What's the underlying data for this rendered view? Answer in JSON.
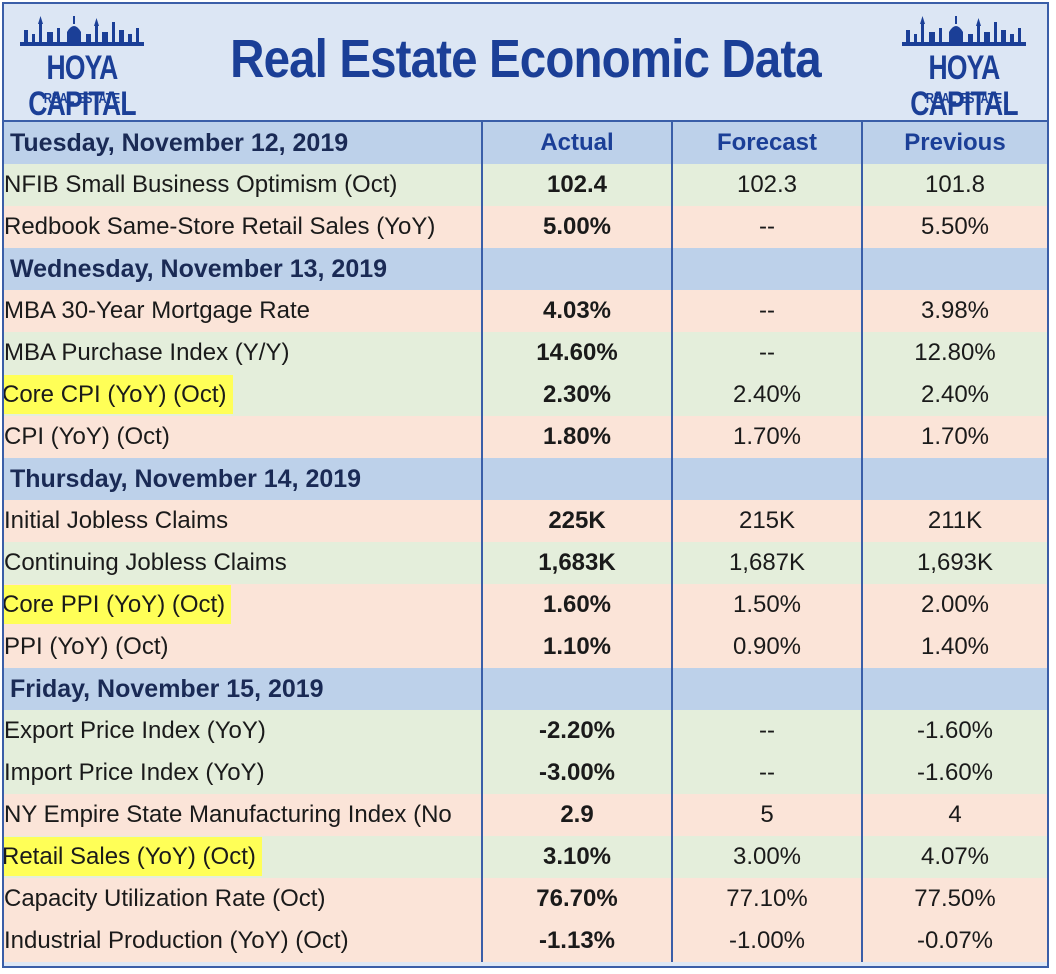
{
  "header": {
    "title": "Real Estate Economic Data",
    "logo_brand": "HOYA CAPITAL",
    "logo_sub": "REAL ESTATE"
  },
  "columns": {
    "actual": "Actual",
    "forecast": "Forecast",
    "previous": "Previous"
  },
  "sections": [
    {
      "date": "Tuesday, November 12, 2019",
      "rows": [
        {
          "label": "NFIB Small Business Optimism (Oct)",
          "actual": "102.4",
          "forecast": "102.3",
          "previous": "101.8"
        },
        {
          "label": "Redbook Same-Store Retail Sales (YoY)",
          "actual": "5.00%",
          "forecast": "--",
          "previous": "5.50%"
        }
      ]
    },
    {
      "date": "Wednesday, November 13, 2019",
      "rows": [
        {
          "label": "MBA 30-Year Mortgage Rate",
          "actual": "4.03%",
          "forecast": "--",
          "previous": "3.98%"
        },
        {
          "label": "MBA Purchase Index (Y/Y)",
          "actual": "14.60%",
          "forecast": "--",
          "previous": "12.80%"
        },
        {
          "label": "Core CPI (YoY) (Oct)",
          "actual": "2.30%",
          "forecast": "2.40%",
          "previous": "2.40%"
        },
        {
          "label": "CPI (YoY) (Oct)",
          "actual": "1.80%",
          "forecast": "1.70%",
          "previous": "1.70%"
        }
      ]
    },
    {
      "date": "Thursday, November 14, 2019",
      "rows": [
        {
          "label": "Initial Jobless Claims",
          "actual": "225K",
          "forecast": "215K",
          "previous": "211K"
        },
        {
          "label": "Continuing Jobless Claims",
          "actual": "1,683K",
          "forecast": "1,687K",
          "previous": "1,693K"
        },
        {
          "label": "Core PPI (YoY) (Oct)",
          "actual": "1.60%",
          "forecast": "1.50%",
          "previous": "2.00%"
        },
        {
          "label": "PPI (YoY) (Oct)",
          "actual": "1.10%",
          "forecast": "0.90%",
          "previous": "1.40%"
        }
      ]
    },
    {
      "date": "Friday, November 15, 2019",
      "rows": [
        {
          "label": "Export Price Index (YoY)",
          "actual": "-2.20%",
          "forecast": "--",
          "previous": "-1.60%"
        },
        {
          "label": "Import Price Index (YoY)",
          "actual": "-3.00%",
          "forecast": "--",
          "previous": "-1.60%"
        },
        {
          "label": "NY Empire State Manufacturing Index (No",
          "actual": "2.9",
          "forecast": "5",
          "previous": "4"
        },
        {
          "label": "Retail Sales (YoY) (Oct)",
          "actual": "3.10%",
          "forecast": "3.00%",
          "previous": "4.07%"
        },
        {
          "label": "Capacity Utilization Rate (Oct)",
          "actual": "76.70%",
          "forecast": "77.10%",
          "previous": "77.50%"
        },
        {
          "label": "Industrial Production (YoY) (Oct)",
          "actual": "-1.13%",
          "forecast": "-1.00%",
          "previous": "-0.07%"
        }
      ]
    }
  ],
  "colors": {
    "brand_blue": "#1b3f97",
    "positive_green": "#3c9a2b",
    "negative_red": "#e03224",
    "highlight_yellow": "#ffff57"
  }
}
